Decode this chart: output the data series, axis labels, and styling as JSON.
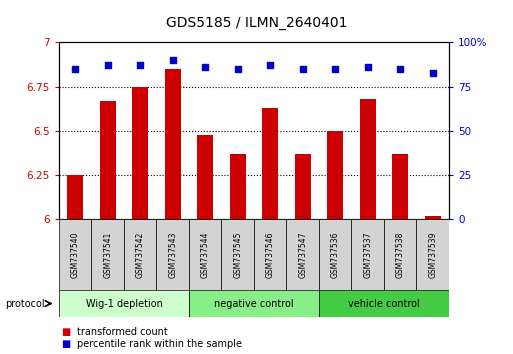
{
  "title": "GDS5185 / ILMN_2640401",
  "samples": [
    "GSM737540",
    "GSM737541",
    "GSM737542",
    "GSM737543",
    "GSM737544",
    "GSM737545",
    "GSM737546",
    "GSM737547",
    "GSM737536",
    "GSM737537",
    "GSM737538",
    "GSM737539"
  ],
  "bar_values": [
    6.25,
    6.67,
    6.75,
    6.85,
    6.48,
    6.37,
    6.63,
    6.37,
    6.5,
    6.68,
    6.37,
    6.02
  ],
  "scatter_values": [
    85,
    87,
    87,
    90,
    86,
    85,
    87,
    85,
    85,
    86,
    85,
    83
  ],
  "bar_color": "#cc0000",
  "scatter_color": "#0000cc",
  "ylim_left": [
    6.0,
    7.0
  ],
  "ylim_right": [
    0,
    100
  ],
  "yticks_left": [
    6.0,
    6.25,
    6.5,
    6.75,
    7.0
  ],
  "yticks_right": [
    0,
    25,
    50,
    75,
    100
  ],
  "ytick_labels_left": [
    "6",
    "6.25",
    "6.5",
    "6.75",
    "7"
  ],
  "ytick_labels_right": [
    "0",
    "25",
    "50",
    "75",
    "100%"
  ],
  "groups": [
    {
      "label": "Wig-1 depletion",
      "indices": [
        0,
        1,
        2,
        3
      ],
      "color": "#ccffcc"
    },
    {
      "label": "negative control",
      "indices": [
        4,
        5,
        6,
        7
      ],
      "color": "#88ee88"
    },
    {
      "label": "vehicle control",
      "indices": [
        8,
        9,
        10,
        11
      ],
      "color": "#44cc44"
    }
  ],
  "protocol_label": "protocol",
  "legend_items": [
    {
      "label": "transformed count",
      "color": "#cc0000"
    },
    {
      "label": "percentile rank within the sample",
      "color": "#0000cc"
    }
  ],
  "background_color": "#ffffff",
  "bar_color_left": "#cc0000",
  "bar_color_right": "#0000cc",
  "sample_box_color": "#d3d3d3",
  "bar_width": 0.5
}
